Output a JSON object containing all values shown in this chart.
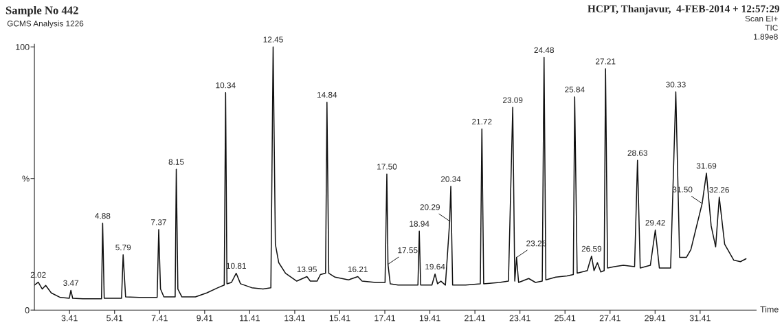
{
  "chart_data": {
    "type": "line",
    "title": "Sample No 442",
    "subtitle": "GCMS Analysis 1226",
    "xlabel": "Time",
    "annotations": [
      "HCPT, Thanjavur,  4-FEB-2014 + 12:57:29",
      "Scan EI+",
      "TIC",
      "1.89e8",
      {
        "text": "2.02",
        "x": 2.02,
        "y": 10.6
      },
      {
        "text": "3.47",
        "x": 3.47,
        "y": 7.5
      },
      {
        "text": "4.88",
        "x": 4.88,
        "y": 33
      },
      {
        "text": "5.79",
        "x": 5.79,
        "y": 21
      },
      {
        "text": "7.37",
        "x": 7.37,
        "y": 30.6
      },
      {
        "text": "8.15",
        "x": 8.15,
        "y": 53.5
      },
      {
        "text": "10.34",
        "x": 10.34,
        "y": 82.6
      },
      {
        "text": "10.81",
        "x": 10.81,
        "y": 14
      },
      {
        "text": "12.45",
        "x": 12.45,
        "y": 100
      },
      {
        "text": "13.95",
        "x": 13.95,
        "y": 12.7
      },
      {
        "text": "14.84",
        "x": 14.84,
        "y": 79
      },
      {
        "text": "16.21",
        "x": 16.21,
        "y": 12.7
      },
      {
        "text": "17.50",
        "x": 17.5,
        "y": 51.7
      },
      {
        "text": "17.55",
        "x": 17.55,
        "y": 17.4
      },
      {
        "text": "18.94",
        "x": 18.94,
        "y": 30
      },
      {
        "text": "19.64",
        "x": 19.64,
        "y": 13.7
      },
      {
        "text": "20.29",
        "x": 20.29,
        "y": 33.8
      },
      {
        "text": "20.34",
        "x": 20.34,
        "y": 47
      },
      {
        "text": "21.72",
        "x": 21.72,
        "y": 68.8
      },
      {
        "text": "23.09",
        "x": 23.09,
        "y": 77
      },
      {
        "text": "23.26",
        "x": 23.26,
        "y": 20
      },
      {
        "text": "24.48",
        "x": 24.48,
        "y": 96
      },
      {
        "text": "25.84",
        "x": 25.84,
        "y": 81
      },
      {
        "text": "26.59",
        "x": 26.59,
        "y": 20.5
      },
      {
        "text": "27.21",
        "x": 27.21,
        "y": 91.7
      },
      {
        "text": "28.63",
        "x": 28.63,
        "y": 56.9
      },
      {
        "text": "29.42",
        "x": 29.42,
        "y": 30.4
      },
      {
        "text": "30.33",
        "x": 30.33,
        "y": 82.9
      },
      {
        "text": "31.50",
        "x": 31.5,
        "y": 40.5
      },
      {
        "text": "31.69",
        "x": 31.69,
        "y": 52
      },
      {
        "text": "32.26",
        "x": 32.26,
        "y": 42.9
      }
    ],
    "x": [
      1.85,
      2.02,
      2.2,
      2.35,
      2.6,
      3.0,
      3.4,
      3.47,
      3.55,
      4.0,
      4.83,
      4.88,
      4.95,
      5.72,
      5.79,
      5.9,
      6.5,
      7.3,
      7.37,
      7.45,
      7.6,
      8.1,
      8.15,
      8.22,
      8.4,
      9.0,
      9.5,
      10.0,
      10.28,
      10.34,
      10.4,
      10.6,
      10.81,
      11.0,
      11.5,
      12.0,
      12.35,
      12.45,
      12.55,
      12.7,
      13.0,
      13.5,
      13.95,
      14.1,
      14.4,
      14.55,
      14.78,
      14.84,
      14.92,
      15.2,
      15.8,
      16.21,
      16.4,
      17.0,
      17.42,
      17.5,
      17.55,
      17.65,
      18.0,
      18.88,
      18.94,
      19.0,
      19.5,
      19.64,
      19.75,
      19.9,
      20.1,
      20.29,
      20.34,
      20.42,
      21.0,
      21.65,
      21.72,
      21.8,
      22.5,
      22.9,
      23.09,
      23.18,
      23.26,
      23.35,
      23.8,
      24.1,
      24.4,
      24.48,
      24.56,
      25.0,
      25.5,
      25.78,
      25.84,
      25.95,
      26.4,
      26.5,
      26.59,
      26.7,
      26.85,
      27.0,
      27.15,
      27.21,
      27.3,
      27.6,
      28.0,
      28.5,
      28.63,
      28.75,
      29.2,
      29.42,
      29.6,
      30.1,
      30.33,
      30.5,
      30.8,
      31.0,
      31.2,
      31.5,
      31.69,
      31.9,
      32.1,
      32.26,
      32.5,
      32.9,
      33.2,
      33.45
    ],
    "series": [
      {
        "color": "#111111",
        "values": [
          9.5,
          10.6,
          8,
          9.4,
          6.5,
          4.8,
          4.5,
          7.5,
          4.5,
          4.3,
          4.3,
          33,
          4.5,
          4.5,
          21,
          5,
          4.8,
          4.8,
          30.6,
          8,
          5,
          5,
          53.5,
          8,
          5,
          5,
          6.5,
          8.5,
          9.5,
          82.6,
          10,
          10.5,
          14,
          10,
          8.5,
          8,
          8.5,
          100,
          25,
          18,
          14,
          11,
          12.7,
          11,
          11,
          13.5,
          14,
          79,
          14,
          12.5,
          11.5,
          12.7,
          11,
          10.5,
          10.5,
          51.7,
          17.4,
          10,
          9.5,
          9.5,
          30,
          9.5,
          9.5,
          13.7,
          10,
          11,
          9.5,
          33.8,
          47,
          9.5,
          9.5,
          10,
          68.8,
          10,
          10.5,
          11,
          77,
          11,
          20,
          10.5,
          12,
          10.5,
          11,
          96,
          11.5,
          12.5,
          13,
          13.5,
          81,
          14,
          15,
          18,
          20.5,
          15,
          18,
          14.5,
          15,
          91.7,
          16,
          16.5,
          17,
          16.5,
          56.9,
          16,
          17,
          30.4,
          16,
          16,
          82.9,
          20,
          20,
          23,
          30,
          40.5,
          52,
          32,
          24,
          42.9,
          25,
          19,
          18.4,
          19.5
        ]
      }
    ],
    "xlim": [
      1.85,
      33.9
    ],
    "ylim": [
      0,
      101
    ],
    "xticks": [
      3.41,
      5.41,
      7.41,
      9.41,
      11.41,
      13.41,
      15.41,
      17.41,
      19.41,
      21.41,
      23.41,
      25.41,
      27.41,
      29.41,
      31.41
    ],
    "yticks": [
      0,
      {
        "value": 50,
        "label": "%"
      },
      100
    ],
    "grid": false,
    "legend": false
  }
}
